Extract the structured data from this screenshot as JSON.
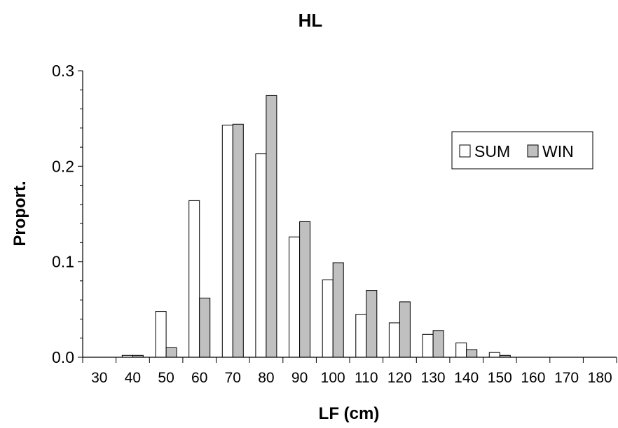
{
  "chart_data": {
    "type": "bar",
    "title": "HL",
    "xlabel": "LF (cm)",
    "ylabel": "Proport.",
    "categories": [
      "30",
      "40",
      "50",
      "60",
      "70",
      "80",
      "90",
      "100",
      "110",
      "120",
      "130",
      "140",
      "150",
      "160",
      "170",
      "180"
    ],
    "series": [
      {
        "name": "SUM",
        "color": "#ffffff",
        "values": [
          0,
          0.002,
          0.048,
          0.164,
          0.243,
          0.213,
          0.126,
          0.081,
          0.045,
          0.036,
          0.024,
          0.015,
          0.005,
          0,
          0,
          0
        ]
      },
      {
        "name": "WIN",
        "color": "#c0c0c0",
        "values": [
          0,
          0.002,
          0.01,
          0.062,
          0.244,
          0.274,
          0.142,
          0.099,
          0.07,
          0.058,
          0.028,
          0.008,
          0.002,
          0,
          0,
          0
        ]
      }
    ],
    "ylim": [
      0,
      0.3
    ],
    "yticks": [
      "0.0",
      "0.1",
      "0.2",
      "0.3"
    ],
    "grid": false,
    "legend": "upper-right"
  }
}
